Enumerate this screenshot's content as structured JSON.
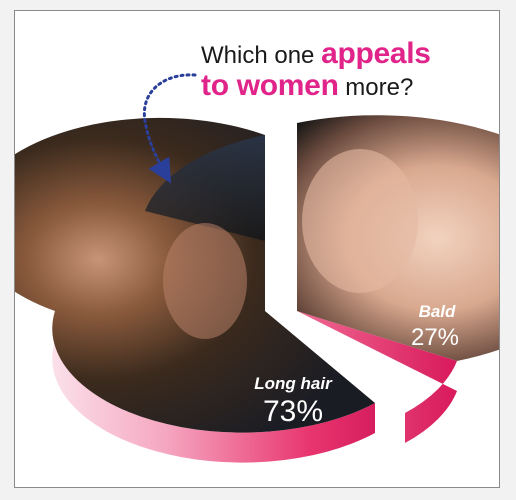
{
  "chart_data": {
    "type": "pie",
    "title_parts": [
      {
        "text": "Which one ",
        "style": "normal"
      },
      {
        "text": "appeals",
        "style": "accent"
      },
      {
        "text": "to women",
        "style": "accent"
      },
      {
        "text": " more?",
        "style": "normal"
      }
    ],
    "slices": [
      {
        "name": "Long hair",
        "label": "73%",
        "value": 73,
        "color": "#e8356f"
      },
      {
        "name": "Bald",
        "label": "27%",
        "value": 27,
        "color": "#e8356f"
      }
    ],
    "exploded_slice": "Bald",
    "accent_color": "#e0248a",
    "arrow_color": "#2a3f9a"
  }
}
